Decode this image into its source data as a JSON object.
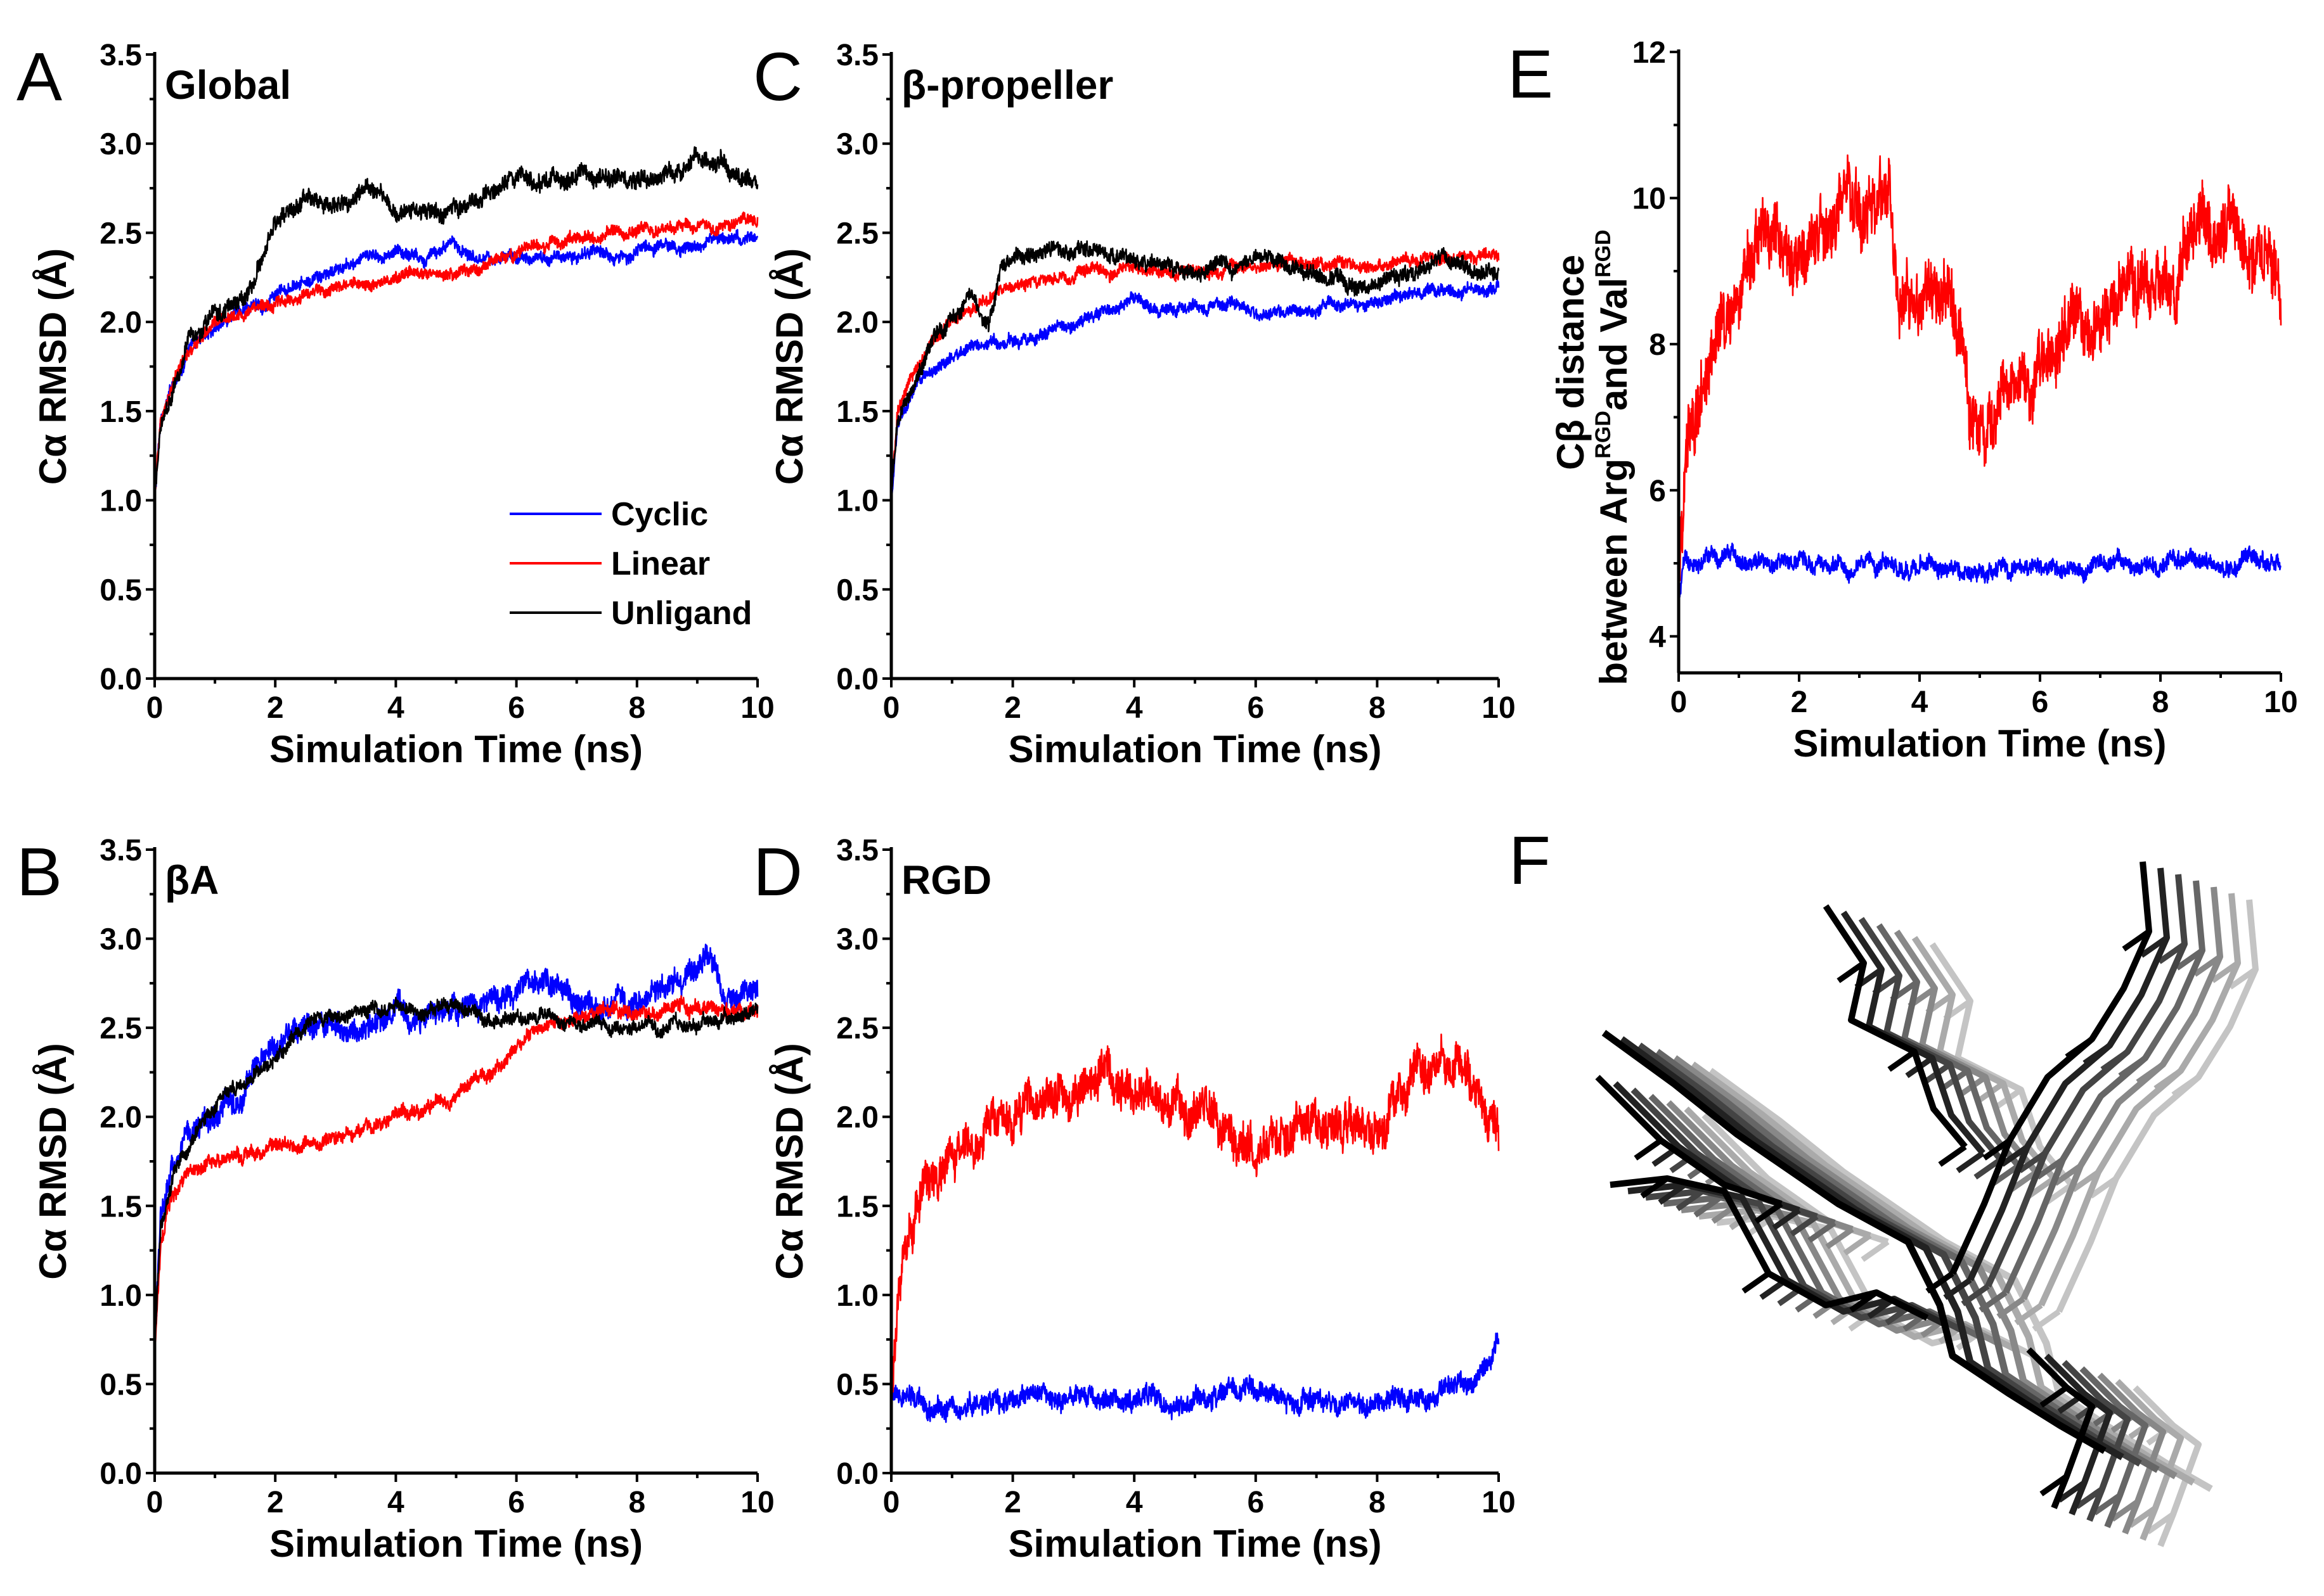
{
  "figure": {
    "colors": {
      "Cyclic": "#0000ff",
      "Linear": "#ff0000",
      "Unligand": "#000000"
    },
    "panel_f": {
      "letter": "F"
    }
  },
  "chart_data": [
    {
      "id": "A",
      "letter": "A",
      "title": "Global",
      "type": "line",
      "ylabel_main": "Cα RMSD (Å)",
      "ylabel_sub": "",
      "xlabel": "Simulation Time (ns)",
      "xlim": [
        0,
        10
      ],
      "ylim": [
        0,
        3.5
      ],
      "xticks": [
        0,
        2,
        4,
        6,
        8,
        10
      ],
      "yticks": [
        0.0,
        0.5,
        1.0,
        1.5,
        2.0,
        2.5,
        3.0,
        3.5
      ],
      "ytick_labels": [
        "0.0",
        "0.5",
        "1.0",
        "1.5",
        "2.0",
        "2.5",
        "3.0",
        "3.5"
      ],
      "legend": {
        "placement": "lower-right",
        "entries": [
          "Cyclic",
          "Linear",
          "Unligand"
        ]
      },
      "series": [
        {
          "name": "Cyclic",
          "noise": 0.035,
          "x": [
            0,
            0.1,
            0.3,
            0.6,
            1.0,
            1.5,
            2.0,
            2.5,
            3.0,
            3.5,
            4.0,
            4.5,
            5.0,
            5.5,
            6.0,
            6.5,
            7.0,
            7.5,
            8.0,
            8.5,
            9.0,
            9.5,
            10.0
          ],
          "values": [
            1.0,
            1.45,
            1.65,
            1.85,
            1.98,
            2.08,
            2.14,
            2.2,
            2.28,
            2.35,
            2.4,
            2.38,
            2.42,
            2.38,
            2.36,
            2.35,
            2.37,
            2.38,
            2.4,
            2.42,
            2.43,
            2.46,
            2.48
          ]
        },
        {
          "name": "Linear",
          "noise": 0.035,
          "x": [
            0,
            0.1,
            0.3,
            0.6,
            1.0,
            1.5,
            2.0,
            2.5,
            3.0,
            3.5,
            4.0,
            4.5,
            5.0,
            5.5,
            6.0,
            6.5,
            7.0,
            7.5,
            8.0,
            8.5,
            9.0,
            9.5,
            10.0
          ],
          "values": [
            1.0,
            1.45,
            1.65,
            1.85,
            1.98,
            2.06,
            2.1,
            2.14,
            2.18,
            2.22,
            2.25,
            2.28,
            2.3,
            2.34,
            2.38,
            2.43,
            2.47,
            2.5,
            2.52,
            2.55,
            2.55,
            2.53,
            2.58
          ]
        },
        {
          "name": "Unligand",
          "noise": 0.05,
          "x": [
            0,
            0.1,
            0.3,
            0.6,
            1.0,
            1.5,
            1.8,
            2.0,
            2.5,
            3.0,
            3.5,
            4.0,
            4.5,
            5.0,
            5.5,
            6.0,
            6.5,
            7.0,
            7.5,
            8.0,
            8.5,
            9.0,
            9.5,
            10.0
          ],
          "values": [
            1.0,
            1.45,
            1.65,
            1.9,
            2.05,
            2.15,
            2.35,
            2.55,
            2.65,
            2.68,
            2.72,
            2.6,
            2.62,
            2.65,
            2.7,
            2.75,
            2.78,
            2.8,
            2.8,
            2.78,
            2.82,
            2.9,
            2.88,
            2.75
          ]
        }
      ]
    },
    {
      "id": "B",
      "letter": "B",
      "title": "βA",
      "type": "line",
      "ylabel_main": "Cα RMSD (Å)",
      "ylabel_sub": "",
      "xlabel": "Simulation Time (ns)",
      "xlim": [
        0,
        10
      ],
      "ylim": [
        0,
        3.5
      ],
      "xticks": [
        0,
        2,
        4,
        6,
        8,
        10
      ],
      "yticks": [
        0.0,
        0.5,
        1.0,
        1.5,
        2.0,
        2.5,
        3.0,
        3.5
      ],
      "ytick_labels": [
        "0.0",
        "0.5",
        "1.0",
        "1.5",
        "2.0",
        "2.5",
        "3.0",
        "3.5"
      ],
      "series": [
        {
          "name": "Cyclic",
          "noise": 0.07,
          "x": [
            0,
            0.1,
            0.3,
            0.6,
            1.0,
            1.5,
            2.0,
            2.5,
            3.0,
            3.5,
            4.0,
            4.5,
            5.0,
            5.5,
            6.0,
            6.5,
            7.0,
            7.5,
            8.0,
            8.5,
            9.0,
            9.2,
            9.5,
            10.0
          ],
          "values": [
            0.7,
            1.4,
            1.7,
            1.9,
            2.0,
            2.2,
            2.4,
            2.5,
            2.5,
            2.5,
            2.55,
            2.55,
            2.6,
            2.62,
            2.68,
            2.72,
            2.7,
            2.65,
            2.68,
            2.7,
            2.8,
            2.95,
            2.65,
            2.7
          ]
        },
        {
          "name": "Linear",
          "noise": 0.04,
          "x": [
            0,
            0.1,
            0.3,
            0.6,
            1.0,
            1.5,
            2.0,
            2.5,
            3.0,
            3.5,
            4.0,
            4.5,
            5.0,
            5.5,
            6.0,
            6.5,
            7.0,
            7.5,
            8.0,
            8.5,
            9.0,
            9.5,
            10.0
          ],
          "values": [
            0.7,
            1.3,
            1.55,
            1.7,
            1.76,
            1.8,
            1.82,
            1.84,
            1.88,
            1.95,
            2.0,
            2.07,
            2.15,
            2.25,
            2.4,
            2.5,
            2.55,
            2.6,
            2.55,
            2.58,
            2.62,
            2.6,
            2.62
          ]
        },
        {
          "name": "Unligand",
          "noise": 0.04,
          "x": [
            0,
            0.1,
            0.3,
            0.6,
            1.0,
            1.5,
            2.0,
            2.5,
            3.0,
            3.5,
            4.0,
            4.5,
            5.0,
            5.5,
            6.0,
            6.5,
            7.0,
            7.5,
            8.0,
            8.5,
            9.0,
            9.5,
            10.0
          ],
          "values": [
            0.7,
            1.4,
            1.7,
            1.85,
            2.05,
            2.2,
            2.35,
            2.48,
            2.55,
            2.6,
            2.62,
            2.58,
            2.62,
            2.55,
            2.6,
            2.55,
            2.52,
            2.5,
            2.5,
            2.5,
            2.52,
            2.55,
            2.62
          ]
        }
      ]
    },
    {
      "id": "C",
      "letter": "C",
      "title": "β-propeller",
      "type": "line",
      "ylabel_main": "Cα RMSD (Å)",
      "ylabel_sub": "",
      "xlabel": "Simulation Time (ns)",
      "xlim": [
        0,
        10
      ],
      "ylim": [
        0,
        3.5
      ],
      "xticks": [
        0,
        2,
        4,
        6,
        8,
        10
      ],
      "yticks": [
        0.0,
        0.5,
        1.0,
        1.5,
        2.0,
        2.5,
        3.0,
        3.5
      ],
      "ytick_labels": [
        "0.0",
        "0.5",
        "1.0",
        "1.5",
        "2.0",
        "2.5",
        "3.0",
        "3.5"
      ],
      "series": [
        {
          "name": "Cyclic",
          "noise": 0.035,
          "x": [
            0,
            0.1,
            0.3,
            0.6,
            1.0,
            1.5,
            2.0,
            2.5,
            3.0,
            3.5,
            4.0,
            4.5,
            5.0,
            5.5,
            6.0,
            6.5,
            7.0,
            7.5,
            8.0,
            8.5,
            9.0,
            9.5,
            10.0
          ],
          "values": [
            1.0,
            1.4,
            1.55,
            1.7,
            1.8,
            1.85,
            1.9,
            1.95,
            2.0,
            2.05,
            2.1,
            2.07,
            2.08,
            2.1,
            2.05,
            2.05,
            2.07,
            2.1,
            2.12,
            2.15,
            2.17,
            2.18,
            2.2
          ]
        },
        {
          "name": "Linear",
          "noise": 0.035,
          "x": [
            0,
            0.1,
            0.3,
            0.6,
            1.0,
            1.5,
            2.0,
            2.5,
            3.0,
            3.5,
            4.0,
            4.5,
            5.0,
            5.5,
            6.0,
            6.5,
            7.0,
            7.5,
            8.0,
            8.5,
            9.0,
            9.5,
            10.0
          ],
          "values": [
            1.0,
            1.5,
            1.65,
            1.85,
            2.0,
            2.15,
            2.2,
            2.25,
            2.25,
            2.28,
            2.3,
            2.28,
            2.3,
            2.3,
            2.3,
            2.32,
            2.33,
            2.34,
            2.33,
            2.35,
            2.35,
            2.37,
            2.35
          ]
        },
        {
          "name": "Unligand",
          "noise": 0.045,
          "x": [
            0,
            0.1,
            0.3,
            0.6,
            1.0,
            1.3,
            1.6,
            1.8,
            2.0,
            2.5,
            3.0,
            3.5,
            4.0,
            4.5,
            5.0,
            5.5,
            6.0,
            6.5,
            7.0,
            7.5,
            8.0,
            8.5,
            9.0,
            9.5,
            10.0
          ],
          "values": [
            1.0,
            1.45,
            1.6,
            1.85,
            2.05,
            2.15,
            2.0,
            2.25,
            2.35,
            2.38,
            2.4,
            2.38,
            2.35,
            2.33,
            2.32,
            2.3,
            2.4,
            2.3,
            2.25,
            2.2,
            2.22,
            2.25,
            2.35,
            2.3,
            2.25
          ]
        }
      ]
    },
    {
      "id": "D",
      "letter": "D",
      "title": "RGD",
      "type": "line",
      "ylabel_main": "Cα RMSD (Å)",
      "ylabel_sub": "",
      "xlabel": "Simulation Time (ns)",
      "xlim": [
        0,
        10
      ],
      "ylim": [
        0,
        3.5
      ],
      "xticks": [
        0,
        2,
        4,
        6,
        8,
        10
      ],
      "yticks": [
        0.0,
        0.5,
        1.0,
        1.5,
        2.0,
        2.5,
        3.0,
        3.5
      ],
      "ytick_labels": [
        "0.0",
        "0.5",
        "1.0",
        "1.5",
        "2.0",
        "2.5",
        "3.0",
        "3.5"
      ],
      "series": [
        {
          "name": "Cyclic",
          "noise": 0.06,
          "x": [
            0,
            0.5,
            1.0,
            2.0,
            3.0,
            4.0,
            5.0,
            6.0,
            7.0,
            8.0,
            9.0,
            9.5,
            10.0
          ],
          "values": [
            0.4,
            0.38,
            0.38,
            0.4,
            0.42,
            0.42,
            0.42,
            0.45,
            0.42,
            0.4,
            0.42,
            0.5,
            0.65
          ]
        },
        {
          "name": "Linear",
          "noise": 0.12,
          "x": [
            0,
            0.1,
            0.3,
            0.6,
            1.0,
            1.5,
            2.0,
            2.5,
            3.0,
            3.5,
            4.0,
            4.5,
            5.0,
            5.5,
            6.0,
            6.5,
            7.0,
            7.5,
            8.0,
            8.5,
            9.0,
            9.5,
            10.0
          ],
          "values": [
            0.4,
            1.1,
            1.4,
            1.6,
            1.75,
            1.95,
            2.05,
            2.15,
            2.15,
            2.3,
            2.15,
            2.05,
            2.0,
            1.95,
            1.75,
            1.85,
            1.9,
            1.95,
            2.0,
            2.2,
            2.3,
            2.25,
            2.0
          ]
        }
      ]
    },
    {
      "id": "E",
      "letter": "E",
      "title": "",
      "type": "line",
      "ylabel_main": "Cβ distance",
      "ylabel_sub": "between Arg<sup>RGD</sup>and Val<sup>RGD</sup>",
      "xlabel": "Simulation Time (ns)",
      "xlim": [
        0,
        10
      ],
      "ylim": [
        3.5,
        12
      ],
      "xticks": [
        0,
        2,
        4,
        6,
        8,
        10
      ],
      "yticks": [
        4,
        6,
        8,
        10,
        12
      ],
      "ytick_labels": [
        "4",
        "6",
        "8",
        "10",
        "12"
      ],
      "series": [
        {
          "name": "Cyclic",
          "noise": 0.12,
          "x": [
            0,
            0.1,
            0.5,
            2.0,
            4.0,
            6.0,
            8.0,
            10.0
          ],
          "values": [
            4.5,
            5.0,
            5.05,
            5.0,
            5.0,
            4.95,
            5.0,
            5.0
          ]
        },
        {
          "name": "Linear",
          "noise": 0.45,
          "x": [
            0,
            0.1,
            0.3,
            0.6,
            1.0,
            1.3,
            2.0,
            2.5,
            3.0,
            3.5,
            3.6,
            3.8,
            4.0,
            4.5,
            4.8,
            5.0,
            5.5,
            6.0,
            6.5,
            7.0,
            7.5,
            8.0,
            8.5,
            9.0,
            9.5,
            10.0
          ],
          "values": [
            4.6,
            6.5,
            7.5,
            8.0,
            8.5,
            9.5,
            9.3,
            9.8,
            9.8,
            10.5,
            8.8,
            8.8,
            8.5,
            8.5,
            7.5,
            6.8,
            7.0,
            7.8,
            8.3,
            8.5,
            8.8,
            8.8,
            9.5,
            9.8,
            9.5,
            8.6
          ]
        }
      ]
    }
  ]
}
